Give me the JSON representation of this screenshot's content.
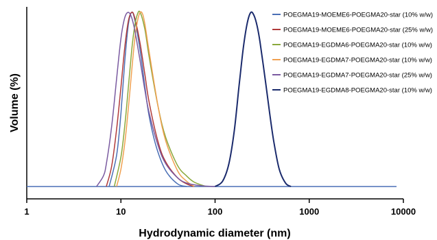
{
  "chart_data": {
    "type": "line",
    "title": "",
    "xlabel": "Hydrodynamic diameter (nm)",
    "ylabel": "Volume (%)",
    "x_scale": "log",
    "xlim": [
      1,
      10000
    ],
    "x_ticks": [
      "1",
      "10",
      "100",
      "1000",
      "10000"
    ],
    "ylim": [
      0,
      1.08
    ],
    "y_ticks_shown": false,
    "grid": false,
    "legend_position": "top-right",
    "series": [
      {
        "name": "POEGMA19-MOEME6-POEGMA20-star (10% w/w)",
        "color": "#4a6fb5",
        "x": [
          7.5,
          9,
          10,
          11,
          12,
          13,
          14,
          16,
          18,
          20,
          24,
          30,
          40,
          50
        ],
        "y": [
          0,
          0.18,
          0.42,
          0.72,
          0.93,
          1.0,
          0.96,
          0.78,
          0.57,
          0.4,
          0.22,
          0.09,
          0.015,
          0
        ]
      },
      {
        "name": "POEGMA19-MOEME6-POEGMA20-star (25% w/w)",
        "color": "#b03a3a",
        "x": [
          7,
          8,
          9,
          10,
          11,
          12,
          13,
          14,
          16,
          18,
          20,
          25,
          30,
          40,
          50,
          60
        ],
        "y": [
          0,
          0.12,
          0.33,
          0.57,
          0.8,
          0.95,
          1.0,
          0.97,
          0.82,
          0.64,
          0.48,
          0.25,
          0.14,
          0.05,
          0.015,
          0
        ]
      },
      {
        "name": "POEGMA19-EGDMA6-POEGMA20-star (10% w/w)",
        "color": "#8aa83c",
        "x": [
          8.5,
          10,
          11,
          12,
          13,
          14,
          15,
          16,
          18,
          20,
          25,
          30,
          40,
          50,
          60,
          80
        ],
        "y": [
          0,
          0.17,
          0.35,
          0.57,
          0.78,
          0.92,
          0.99,
          1.0,
          0.9,
          0.74,
          0.45,
          0.28,
          0.12,
          0.06,
          0.025,
          0
        ]
      },
      {
        "name": "POEGMA19-EGDMA7-POEGMA20-star (10% w/w)",
        "color": "#f0a050",
        "x": [
          9,
          10,
          11,
          12,
          13,
          14,
          15,
          16,
          17,
          18,
          20,
          25,
          30,
          40,
          50,
          60
        ],
        "y": [
          0,
          0.1,
          0.25,
          0.45,
          0.66,
          0.84,
          0.95,
          1.0,
          0.99,
          0.93,
          0.77,
          0.45,
          0.26,
          0.09,
          0.03,
          0
        ]
      },
      {
        "name": "POEGMA19-EGDMA7-POEGMA20-star (25% w/w)",
        "color": "#7a5aa0",
        "x": [
          5.5,
          6.5,
          7,
          8,
          9,
          10,
          11,
          12,
          13,
          14,
          16,
          18,
          20,
          25,
          30,
          40,
          50,
          70,
          100
        ],
        "y": [
          0,
          0.06,
          0.13,
          0.35,
          0.62,
          0.85,
          0.97,
          1.0,
          0.97,
          0.9,
          0.72,
          0.55,
          0.42,
          0.23,
          0.13,
          0.05,
          0.02,
          0.005,
          0
        ]
      },
      {
        "name": "POEGMA19-EGDMA8-POEGMA20-star (10% w/w)",
        "color": "#1a2a6c",
        "x": [
          100,
          120,
          140,
          160,
          180,
          200,
          220,
          240,
          260,
          280,
          300,
          340,
          380,
          420,
          480,
          560,
          640
        ],
        "y": [
          0,
          0.03,
          0.13,
          0.32,
          0.58,
          0.8,
          0.94,
          1.0,
          0.98,
          0.92,
          0.83,
          0.62,
          0.42,
          0.26,
          0.1,
          0.02,
          0
        ]
      }
    ]
  }
}
